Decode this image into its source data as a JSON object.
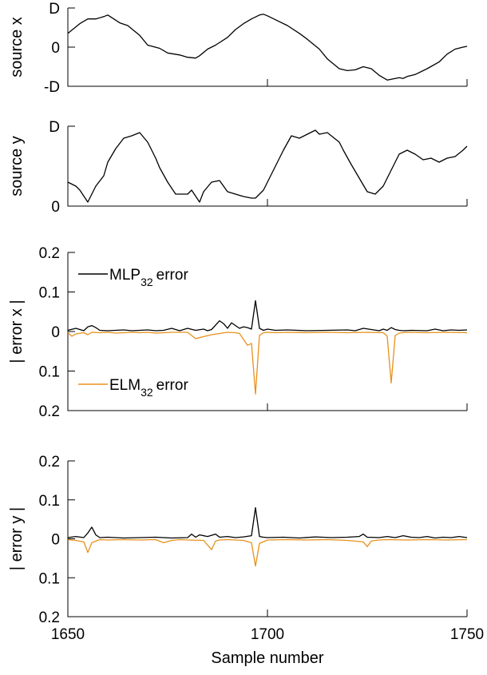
{
  "chart_data": [
    {
      "type": "line",
      "ylabel": "source x",
      "xlim": [
        1650,
        1750
      ],
      "ylim": [
        -1,
        1
      ],
      "yticks": [
        {
          "v": 1,
          "label": "D"
        },
        {
          "v": 0,
          "label": "0"
        },
        {
          "v": -1,
          "label": "-D"
        }
      ],
      "series": [
        {
          "color": "#000000",
          "x": [
            1650,
            1653,
            1655,
            1657,
            1659,
            1660,
            1663,
            1665,
            1668,
            1670,
            1673,
            1675,
            1678,
            1680,
            1682,
            1683,
            1685,
            1687,
            1690,
            1692,
            1694,
            1696,
            1698,
            1699,
            1700,
            1702,
            1705,
            1708,
            1710,
            1713,
            1715,
            1718,
            1720,
            1722,
            1724,
            1726,
            1728,
            1730,
            1731,
            1733,
            1734,
            1735,
            1737,
            1740,
            1743,
            1745,
            1747,
            1749,
            1750
          ],
          "y": [
            0.35,
            0.6,
            0.72,
            0.72,
            0.78,
            0.82,
            0.62,
            0.55,
            0.3,
            0.05,
            -0.03,
            -0.15,
            -0.2,
            -0.26,
            -0.28,
            -0.22,
            -0.05,
            0.05,
            0.25,
            0.45,
            0.6,
            0.72,
            0.82,
            0.84,
            0.8,
            0.7,
            0.55,
            0.35,
            0.2,
            -0.05,
            -0.3,
            -0.55,
            -0.6,
            -0.58,
            -0.5,
            -0.55,
            -0.72,
            -0.84,
            -0.82,
            -0.78,
            -0.8,
            -0.75,
            -0.7,
            -0.55,
            -0.38,
            -0.18,
            -0.05,
            0.0,
            0.02
          ]
        }
      ]
    },
    {
      "type": "line",
      "ylabel": "source y",
      "xlim": [
        1650,
        1750
      ],
      "ylim": [
        0,
        1
      ],
      "yticks": [
        {
          "v": 1,
          "label": "D"
        },
        {
          "v": 0,
          "label": "0"
        }
      ],
      "series": [
        {
          "color": "#000000",
          "x": [
            1650,
            1652,
            1653,
            1655,
            1656,
            1657,
            1659,
            1660,
            1662,
            1664,
            1666,
            1668,
            1670,
            1672,
            1673,
            1675,
            1677,
            1680,
            1681,
            1683,
            1684,
            1686,
            1688,
            1690,
            1692,
            1694,
            1696,
            1697,
            1698,
            1699,
            1700,
            1702,
            1704,
            1706,
            1708,
            1710,
            1712,
            1713,
            1715,
            1716,
            1718,
            1719,
            1721,
            1723,
            1725,
            1727,
            1729,
            1730,
            1731,
            1733,
            1735,
            1737,
            1739,
            1741,
            1743,
            1745,
            1747,
            1749,
            1750
          ],
          "y": [
            0.3,
            0.25,
            0.2,
            0.05,
            0.15,
            0.25,
            0.38,
            0.55,
            0.72,
            0.85,
            0.88,
            0.92,
            0.8,
            0.6,
            0.48,
            0.3,
            0.15,
            0.15,
            0.2,
            0.05,
            0.18,
            0.3,
            0.32,
            0.18,
            0.15,
            0.12,
            0.1,
            0.1,
            0.15,
            0.2,
            0.3,
            0.5,
            0.7,
            0.88,
            0.85,
            0.9,
            0.95,
            0.9,
            0.92,
            0.88,
            0.8,
            0.7,
            0.52,
            0.35,
            0.18,
            0.15,
            0.25,
            0.35,
            0.45,
            0.65,
            0.7,
            0.65,
            0.58,
            0.6,
            0.55,
            0.6,
            0.62,
            0.7,
            0.75
          ]
        }
      ]
    },
    {
      "type": "line",
      "ylabel": "| error x |",
      "xlim": [
        1650,
        1750
      ],
      "ylim": [
        -0.2,
        0.2
      ],
      "yticks": [
        {
          "v": 0.2,
          "label": "0.2"
        },
        {
          "v": 0.1,
          "label": "0.1"
        },
        {
          "v": 0,
          "label": "0"
        },
        {
          "v": -0.1,
          "label": "0.1"
        },
        {
          "v": -0.2,
          "label": "0.2"
        }
      ],
      "legend": {
        "position": "left",
        "entries": [
          {
            "series": 0,
            "text": "MLP",
            "sub": "32",
            "suffix": "error"
          },
          {
            "series": 1,
            "text": "ELM",
            "sub": "32",
            "suffix": "error"
          }
        ]
      },
      "series": [
        {
          "name": "MLP32 error",
          "color": "#000000",
          "x": [
            1650,
            1652,
            1654,
            1655,
            1656,
            1657,
            1658,
            1660,
            1664,
            1666,
            1668,
            1670,
            1672,
            1674,
            1676,
            1678,
            1680,
            1682,
            1684,
            1685,
            1686,
            1688,
            1689,
            1690,
            1691,
            1692,
            1693,
            1694,
            1695,
            1696,
            1697,
            1698,
            1699,
            1700,
            1702,
            1705,
            1710,
            1715,
            1720,
            1722,
            1724,
            1728,
            1729,
            1730,
            1731,
            1732,
            1733,
            1734,
            1736,
            1740,
            1742,
            1744,
            1746,
            1748,
            1750
          ],
          "y": [
            0.003,
            0.008,
            0.002,
            0.012,
            0.015,
            0.01,
            0.003,
            0.002,
            0.004,
            0.002,
            0.003,
            0.004,
            0.002,
            0.003,
            0.008,
            0.002,
            0.008,
            0.003,
            0.006,
            0.002,
            0.005,
            0.027,
            0.02,
            0.008,
            0.022,
            0.015,
            0.008,
            0.012,
            0.01,
            0.006,
            0.078,
            0.008,
            0.003,
            0.006,
            0.003,
            0.004,
            0.002,
            0.003,
            0.004,
            0.002,
            0.008,
            0.002,
            0.006,
            0.003,
            0.01,
            0.005,
            0.003,
            0.002,
            0.003,
            0.002,
            0.006,
            0.002,
            0.004,
            0.003,
            0.004
          ]
        },
        {
          "name": "ELM32 error",
          "color": "#E8901A",
          "x": [
            1650,
            1651,
            1652,
            1654,
            1655,
            1656,
            1658,
            1660,
            1662,
            1664,
            1666,
            1668,
            1670,
            1672,
            1674,
            1676,
            1680,
            1682,
            1684,
            1686,
            1688,
            1690,
            1692,
            1693,
            1694,
            1695,
            1696,
            1697,
            1698,
            1699,
            1700,
            1702,
            1705,
            1710,
            1715,
            1720,
            1725,
            1729,
            1730,
            1731,
            1732,
            1733,
            1735,
            1740,
            1745,
            1750
          ],
          "y": [
            -0.003,
            -0.012,
            -0.006,
            -0.003,
            -0.008,
            -0.002,
            -0.003,
            -0.002,
            -0.004,
            -0.003,
            -0.002,
            -0.003,
            -0.002,
            -0.004,
            -0.003,
            -0.002,
            -0.002,
            -0.018,
            -0.013,
            -0.008,
            -0.005,
            -0.002,
            -0.003,
            -0.005,
            -0.02,
            -0.035,
            -0.03,
            -0.158,
            -0.01,
            -0.003,
            -0.002,
            -0.003,
            -0.002,
            -0.003,
            -0.002,
            -0.003,
            -0.002,
            -0.003,
            -0.012,
            -0.13,
            -0.01,
            -0.004,
            -0.002,
            -0.003,
            -0.002,
            -0.003
          ]
        }
      ]
    },
    {
      "type": "line",
      "ylabel": "| error y |",
      "xlabel": "Sample number",
      "xlim": [
        1650,
        1750
      ],
      "ylim": [
        -0.2,
        0.2
      ],
      "xticks": [
        1650,
        1700,
        1750
      ],
      "yticks": [
        {
          "v": 0.2,
          "label": "0.2"
        },
        {
          "v": 0.1,
          "label": "0.1"
        },
        {
          "v": 0,
          "label": "0"
        },
        {
          "v": -0.1,
          "label": "0.1"
        },
        {
          "v": -0.2,
          "label": "0.2"
        }
      ],
      "series": [
        {
          "name": "MLP32 error",
          "color": "#000000",
          "x": [
            1650,
            1652,
            1654,
            1655,
            1656,
            1657,
            1658,
            1660,
            1664,
            1668,
            1672,
            1676,
            1680,
            1681,
            1682,
            1683,
            1685,
            1687,
            1688,
            1690,
            1692,
            1694,
            1696,
            1697,
            1698,
            1699,
            1700,
            1704,
            1708,
            1712,
            1716,
            1720,
            1723,
            1724,
            1725,
            1728,
            1730,
            1732,
            1734,
            1736,
            1738,
            1740,
            1742,
            1744,
            1746,
            1748,
            1750
          ],
          "y": [
            0.003,
            0.006,
            0.003,
            0.015,
            0.03,
            0.01,
            0.003,
            0.004,
            0.002,
            0.003,
            0.004,
            0.002,
            0.003,
            0.012,
            0.004,
            0.01,
            0.006,
            0.012,
            0.004,
            0.006,
            0.003,
            0.005,
            0.008,
            0.08,
            0.006,
            0.004,
            0.003,
            0.004,
            0.002,
            0.005,
            0.003,
            0.004,
            0.006,
            0.012,
            0.004,
            0.003,
            0.006,
            0.003,
            0.008,
            0.004,
            0.003,
            0.006,
            0.002,
            0.004,
            0.003,
            0.006,
            0.003
          ]
        },
        {
          "name": "ELM32 error",
          "color": "#E8901A",
          "x": [
            1650,
            1652,
            1654,
            1655,
            1656,
            1657,
            1658,
            1660,
            1664,
            1668,
            1672,
            1674,
            1676,
            1678,
            1680,
            1684,
            1686,
            1687,
            1688,
            1690,
            1694,
            1696,
            1697,
            1698,
            1700,
            1705,
            1710,
            1715,
            1720,
            1724,
            1725,
            1726,
            1727,
            1728,
            1730,
            1735,
            1740,
            1745,
            1750
          ],
          "y": [
            -0.002,
            -0.004,
            -0.008,
            -0.035,
            -0.01,
            -0.006,
            -0.002,
            -0.003,
            -0.002,
            -0.003,
            -0.002,
            -0.01,
            -0.004,
            -0.002,
            -0.003,
            -0.004,
            -0.028,
            -0.006,
            -0.003,
            -0.002,
            -0.004,
            -0.01,
            -0.07,
            -0.012,
            -0.003,
            -0.002,
            -0.003,
            -0.002,
            -0.004,
            -0.008,
            -0.02,
            -0.006,
            -0.004,
            -0.003,
            -0.002,
            -0.003,
            -0.002,
            -0.003,
            -0.002
          ]
        }
      ]
    }
  ]
}
